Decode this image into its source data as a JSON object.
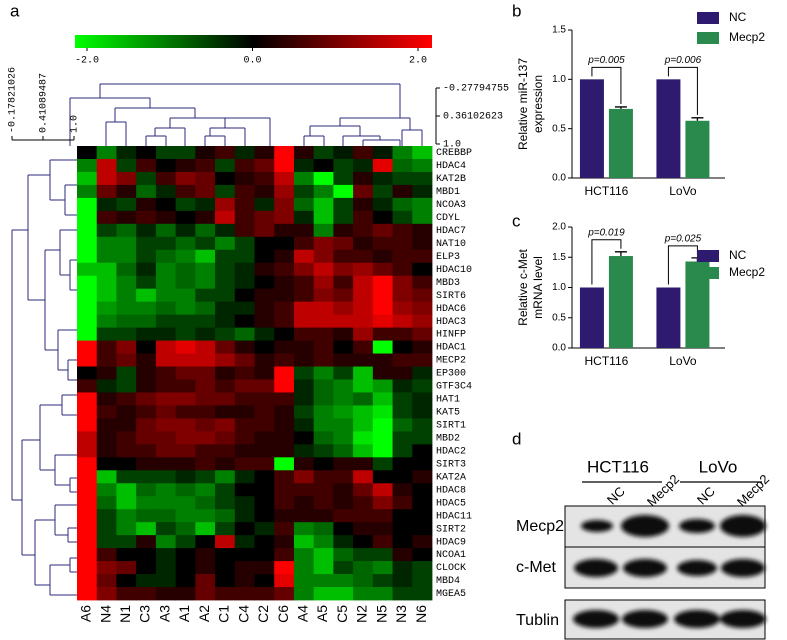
{
  "panels": {
    "a": "a",
    "b": "b",
    "c": "c",
    "d": "d"
  },
  "chart_data": [
    {
      "type": "heatmap",
      "columns": [
        "A6",
        "N4",
        "N1",
        "C3",
        "A3",
        "A1",
        "A2",
        "C1",
        "C4",
        "C2",
        "C6",
        "A4",
        "A5",
        "C5",
        "N2",
        "N5",
        "N3",
        "N6"
      ],
      "rows": [
        "CREBBP",
        "HDAC4",
        "KAT2B",
        "MBD1",
        "NCOA3",
        "CDYL",
        "HDAC7",
        "NAT10",
        "ELP3",
        "HDAC10",
        "MBD3",
        "SIRT6",
        "HDAC6",
        "HDAC3",
        "HINFP",
        "HDAC1",
        "MECP2",
        "EP300",
        "GTF3C4",
        "HAT1",
        "KAT5",
        "SIRT1",
        "MBD2",
        "HDAC2",
        "SIRT3",
        "KAT2A",
        "HDAC8",
        "HDAC5",
        "HDAC11",
        "SIRT2",
        "HDAC9",
        "NCOA1",
        "CLOCK",
        "MBD4",
        "MGEA5"
      ],
      "values": [
        [
          0,
          -1,
          -0.3,
          0,
          -0.5,
          -0.5,
          0.2,
          0.5,
          -0.3,
          0.3,
          2,
          0.3,
          -0.5,
          -0.2,
          0.5,
          -0.2,
          -1,
          -1.5
        ],
        [
          -1,
          1.5,
          -0.5,
          0.5,
          0,
          0.3,
          0.5,
          -0.5,
          0.5,
          0.8,
          2,
          -0.3,
          0,
          -0.5,
          -0.3,
          1.8,
          -0.8,
          -1
        ],
        [
          -1.5,
          1.5,
          1,
          -0.5,
          0.5,
          1,
          0.8,
          0,
          0.3,
          0.5,
          1.5,
          -1,
          -2,
          -0.5,
          0.3,
          -0.3,
          -0.5,
          -0.5
        ],
        [
          -1,
          0.8,
          0.3,
          -0.8,
          -0.3,
          0.5,
          0.8,
          -0.5,
          0.5,
          0.3,
          1.2,
          -0.5,
          -1,
          -2,
          0.8,
          -0.5,
          0.3,
          -0.3
        ],
        [
          -2,
          -0.3,
          -0.5,
          0.3,
          0,
          -0.5,
          -0.3,
          1.2,
          0.5,
          -0.3,
          1,
          -0.8,
          -1.5,
          -0.5,
          0.3,
          -0.3,
          -0.8,
          -1
        ],
        [
          -2,
          0.5,
          0.3,
          0.5,
          0.3,
          0,
          0.3,
          1.5,
          0.5,
          0.8,
          1,
          -0.3,
          -1.5,
          -0.5,
          0.5,
          0,
          -0.5,
          -1
        ],
        [
          -2,
          -0.5,
          -0.8,
          -0.3,
          -0.8,
          -0.3,
          -0.8,
          -0.3,
          0.5,
          0.8,
          0.3,
          0.3,
          -1,
          0.3,
          0.5,
          0.8,
          0.5,
          0.3
        ],
        [
          -2,
          -1,
          -1,
          -0.5,
          -0.5,
          -0.8,
          -0.5,
          -1,
          -0.5,
          0,
          0,
          0.5,
          1,
          0.8,
          0.3,
          0.5,
          0.5,
          0.3
        ],
        [
          -2,
          -1,
          -1,
          -0.5,
          -0.8,
          -1,
          -1.5,
          -0.5,
          -0.5,
          0,
          0.3,
          1.5,
          1,
          0.5,
          0.5,
          0.3,
          0.5,
          0.5
        ],
        [
          -1.5,
          -1.5,
          -0.8,
          -0.3,
          -1,
          -0.8,
          -1,
          -0.5,
          -0.3,
          0.3,
          0.5,
          1,
          1.5,
          1,
          1.2,
          0.8,
          0.5,
          0
        ],
        [
          -2,
          -1.5,
          -1,
          -0.5,
          -1,
          -0.8,
          -1,
          -0.5,
          -0.3,
          0,
          0.3,
          0.5,
          1.2,
          0.5,
          1.5,
          2,
          1,
          0.5
        ],
        [
          -2,
          -1.5,
          -1,
          -1.5,
          -1,
          -1,
          -0.5,
          -0.5,
          0,
          0.3,
          0.3,
          0.5,
          1,
          0.8,
          1.5,
          2,
          1,
          0.8
        ],
        [
          -2,
          -1.2,
          -1,
          -1,
          -0.8,
          -1,
          -0.8,
          -0.3,
          -0.3,
          0.3,
          0.5,
          1.5,
          1.5,
          1.2,
          1.5,
          2,
          1.2,
          1
        ],
        [
          -2,
          -1,
          -0.8,
          -0.8,
          -0.5,
          -0.5,
          -0.5,
          -0.3,
          0,
          0.3,
          0.5,
          1.5,
          1.5,
          1.5,
          1.5,
          1.8,
          1.5,
          1.2
        ],
        [
          -2,
          -0.5,
          -0.5,
          -0.3,
          -0.3,
          -0.5,
          -0.3,
          -0.5,
          -0.8,
          -0.3,
          0,
          0.5,
          0.5,
          0.3,
          1.2,
          0.5,
          0.5,
          0.8
        ],
        [
          2,
          0.5,
          1,
          0,
          1.5,
          1.8,
          1.5,
          0.8,
          0.3,
          0,
          0.3,
          0.3,
          0.5,
          0,
          0.5,
          -2,
          0,
          0.3
        ],
        [
          2,
          0.5,
          0.8,
          0.3,
          1.5,
          1.5,
          1.5,
          1.2,
          0.8,
          0.3,
          0.5,
          0.3,
          0.5,
          0.3,
          0.3,
          0.3,
          0.5,
          0.5
        ],
        [
          0,
          0.3,
          -0.5,
          0.3,
          0.5,
          0.8,
          0.8,
          0.3,
          0.5,
          0.3,
          2,
          -0.5,
          -1,
          -0.5,
          -1.5,
          0.3,
          0.3,
          -0.3
        ],
        [
          0.5,
          -0.3,
          -0.5,
          0.3,
          0.5,
          0.5,
          0.8,
          0.5,
          0.8,
          0.8,
          2,
          -0.3,
          -0.8,
          -1,
          -1.5,
          -1.2,
          -0.3,
          -0.5
        ],
        [
          2,
          0.3,
          0.5,
          0.8,
          1,
          1,
          0.8,
          0.8,
          0.5,
          0.5,
          0.5,
          -0.3,
          -0.8,
          -1,
          -0.8,
          -1.5,
          -0.5,
          -0.3
        ],
        [
          2,
          0.5,
          0.3,
          0.5,
          0.8,
          0.5,
          0.5,
          0.3,
          0.3,
          0.5,
          0.3,
          -0.5,
          -1,
          -1.2,
          -1.5,
          -1.8,
          -0.5,
          -0.3
        ],
        [
          2,
          0.3,
          0.3,
          0.8,
          1,
          1,
          0.8,
          1,
          0.5,
          0.5,
          0.3,
          -0.3,
          -1,
          -1,
          -1.5,
          -2,
          -0.8,
          -0.5
        ],
        [
          1.5,
          0.3,
          0.5,
          0.8,
          0.8,
          1,
          1,
          0.8,
          0.5,
          0.3,
          0.3,
          0,
          -0.8,
          -1,
          -1.8,
          -2,
          -0.5,
          -0.5
        ],
        [
          1.5,
          0.3,
          0.5,
          0.5,
          0.8,
          0.8,
          0.5,
          0.5,
          0.3,
          0.3,
          0.3,
          -0.3,
          -0.5,
          -0.8,
          -1.5,
          -2,
          -0.5,
          0
        ],
        [
          2,
          0,
          0,
          0.3,
          0.3,
          0.3,
          0.5,
          0.3,
          0.5,
          0.5,
          -2,
          0.3,
          0,
          0.3,
          0.3,
          -0.5,
          0,
          0
        ],
        [
          2,
          -1.5,
          -0.5,
          -0.5,
          -0.5,
          -0.3,
          -0.5,
          -1,
          -0.3,
          0,
          0.5,
          1,
          0.5,
          0.5,
          1.5,
          0,
          0,
          0.3
        ],
        [
          2,
          -1,
          -1.5,
          -0.8,
          -1,
          -0.8,
          -1,
          -0.5,
          0,
          0,
          0.5,
          0.5,
          0.5,
          0.3,
          0.8,
          1.5,
          0.3,
          0
        ],
        [
          2,
          -0.8,
          -1.5,
          -1,
          -1,
          -1,
          -0.8,
          -0.5,
          -0.3,
          0,
          0.5,
          0.3,
          0.5,
          0.3,
          0.5,
          1,
          0.5,
          0
        ],
        [
          2,
          -0.5,
          -1,
          -0.8,
          -0.8,
          -1,
          -1,
          -0.8,
          -0.3,
          0,
          0.3,
          0.3,
          0.3,
          0.5,
          0.5,
          0.5,
          0,
          0
        ],
        [
          2,
          -0.5,
          -1,
          -1.5,
          -0.5,
          -0.8,
          -1.5,
          -0.5,
          0,
          -0.3,
          0.5,
          -1,
          -0.8,
          0,
          0.3,
          0.3,
          0,
          0
        ],
        [
          2,
          -0.5,
          -0.5,
          0.3,
          -1,
          -0.5,
          0,
          1.5,
          -0.3,
          0,
          0.3,
          -1.5,
          -1,
          -0.3,
          0,
          0.5,
          0,
          0.3
        ],
        [
          2,
          0.5,
          0,
          0,
          -0.3,
          0,
          0.3,
          0,
          0,
          0,
          0.5,
          -1,
          -1.5,
          -0.8,
          -0.5,
          -0.5,
          0.3,
          0
        ],
        [
          2,
          1,
          0.8,
          0,
          -0.3,
          0,
          0.3,
          0,
          0.3,
          0.3,
          2,
          -1,
          -1.5,
          -0.5,
          -0.8,
          -1,
          -0.3,
          -0.5
        ],
        [
          2,
          0.8,
          0,
          -0.3,
          -0.3,
          0,
          0.8,
          0,
          0.3,
          0,
          1.8,
          -1,
          -1,
          -1,
          -0.8,
          -0.5,
          -0.3,
          -0.5
        ],
        [
          2,
          1,
          0.5,
          0.5,
          0.3,
          0.3,
          0.8,
          0.5,
          0.5,
          0.5,
          0.8,
          -1,
          -1.5,
          -1.5,
          -1,
          -1,
          -0.5,
          -0.5
        ]
      ],
      "clim": [
        -2,
        2
      ],
      "colormap": [
        "#00ff00",
        "#000000",
        "#ff0000"
      ],
      "colorbar_ticks": [
        {
          "value": -2,
          "label": "-2.0"
        },
        {
          "value": 0,
          "label": "0.0"
        },
        {
          "value": 2,
          "label": "2.0"
        }
      ],
      "col_dendrogram_ticks": [
        -0.27794755,
        0.36102623,
        {
          "value": 1,
          "label": "1.0"
        }
      ],
      "row_dendrogram_ticks": [
        -0.17821026,
        0.41089487,
        {
          "value": 1,
          "label": "1.0"
        }
      ]
    },
    {
      "type": "bar",
      "ylabel": [
        "Relative miR-137",
        "expression"
      ],
      "categories": [
        "HCT116",
        "LoVo"
      ],
      "series": [
        {
          "name": "NC",
          "color": "#2e1a6e",
          "values": [
            1.0,
            1.0
          ],
          "errors": [
            0,
            0
          ]
        },
        {
          "name": "Mecp2",
          "color": "#2a8a4e",
          "values": [
            0.7,
            0.58
          ],
          "errors": [
            0.02,
            0.03
          ]
        }
      ],
      "annotations": [
        "p=0.005",
        "p=0.006"
      ],
      "ylim": [
        0,
        1.5
      ],
      "yticks": [
        {
          "value": 0,
          "label": "0.0"
        },
        {
          "value": 0.5,
          "label": "0.5"
        },
        {
          "value": 1,
          "label": "1.0"
        },
        {
          "value": 1.5,
          "label": "1.5"
        }
      ],
      "legend": "upper right"
    },
    {
      "type": "bar",
      "ylabel": [
        "Relative c-Met",
        "mRNA level"
      ],
      "categories": [
        "HCT116",
        "LoVo"
      ],
      "series": [
        {
          "name": "NC",
          "color": "#2e1a6e",
          "values": [
            1.0,
            1.0
          ],
          "errors": [
            0,
            0
          ]
        },
        {
          "name": "Mecp2",
          "color": "#2a8a4e",
          "values": [
            1.52,
            1.43
          ],
          "errors": [
            0.07,
            0.06
          ]
        }
      ],
      "annotations": [
        "p=0.019",
        "p=0.025"
      ],
      "ylim": [
        0,
        2
      ],
      "yticks": [
        {
          "value": 0,
          "label": "0.0"
        },
        {
          "value": 0.5,
          "label": "0.5"
        },
        {
          "value": 1,
          "label": "1.0"
        },
        {
          "value": 1.5,
          "label": "1.5"
        },
        {
          "value": 2,
          "label": "2.0"
        }
      ],
      "legend": "upper right"
    }
  ],
  "blot": {
    "groups": [
      "HCT116",
      "LoVo"
    ],
    "lanes": [
      "NC",
      "Mecp2",
      "NC",
      "Mecp2"
    ],
    "rows": [
      "Mecp2",
      "c-Met",
      "Tublin"
    ]
  }
}
